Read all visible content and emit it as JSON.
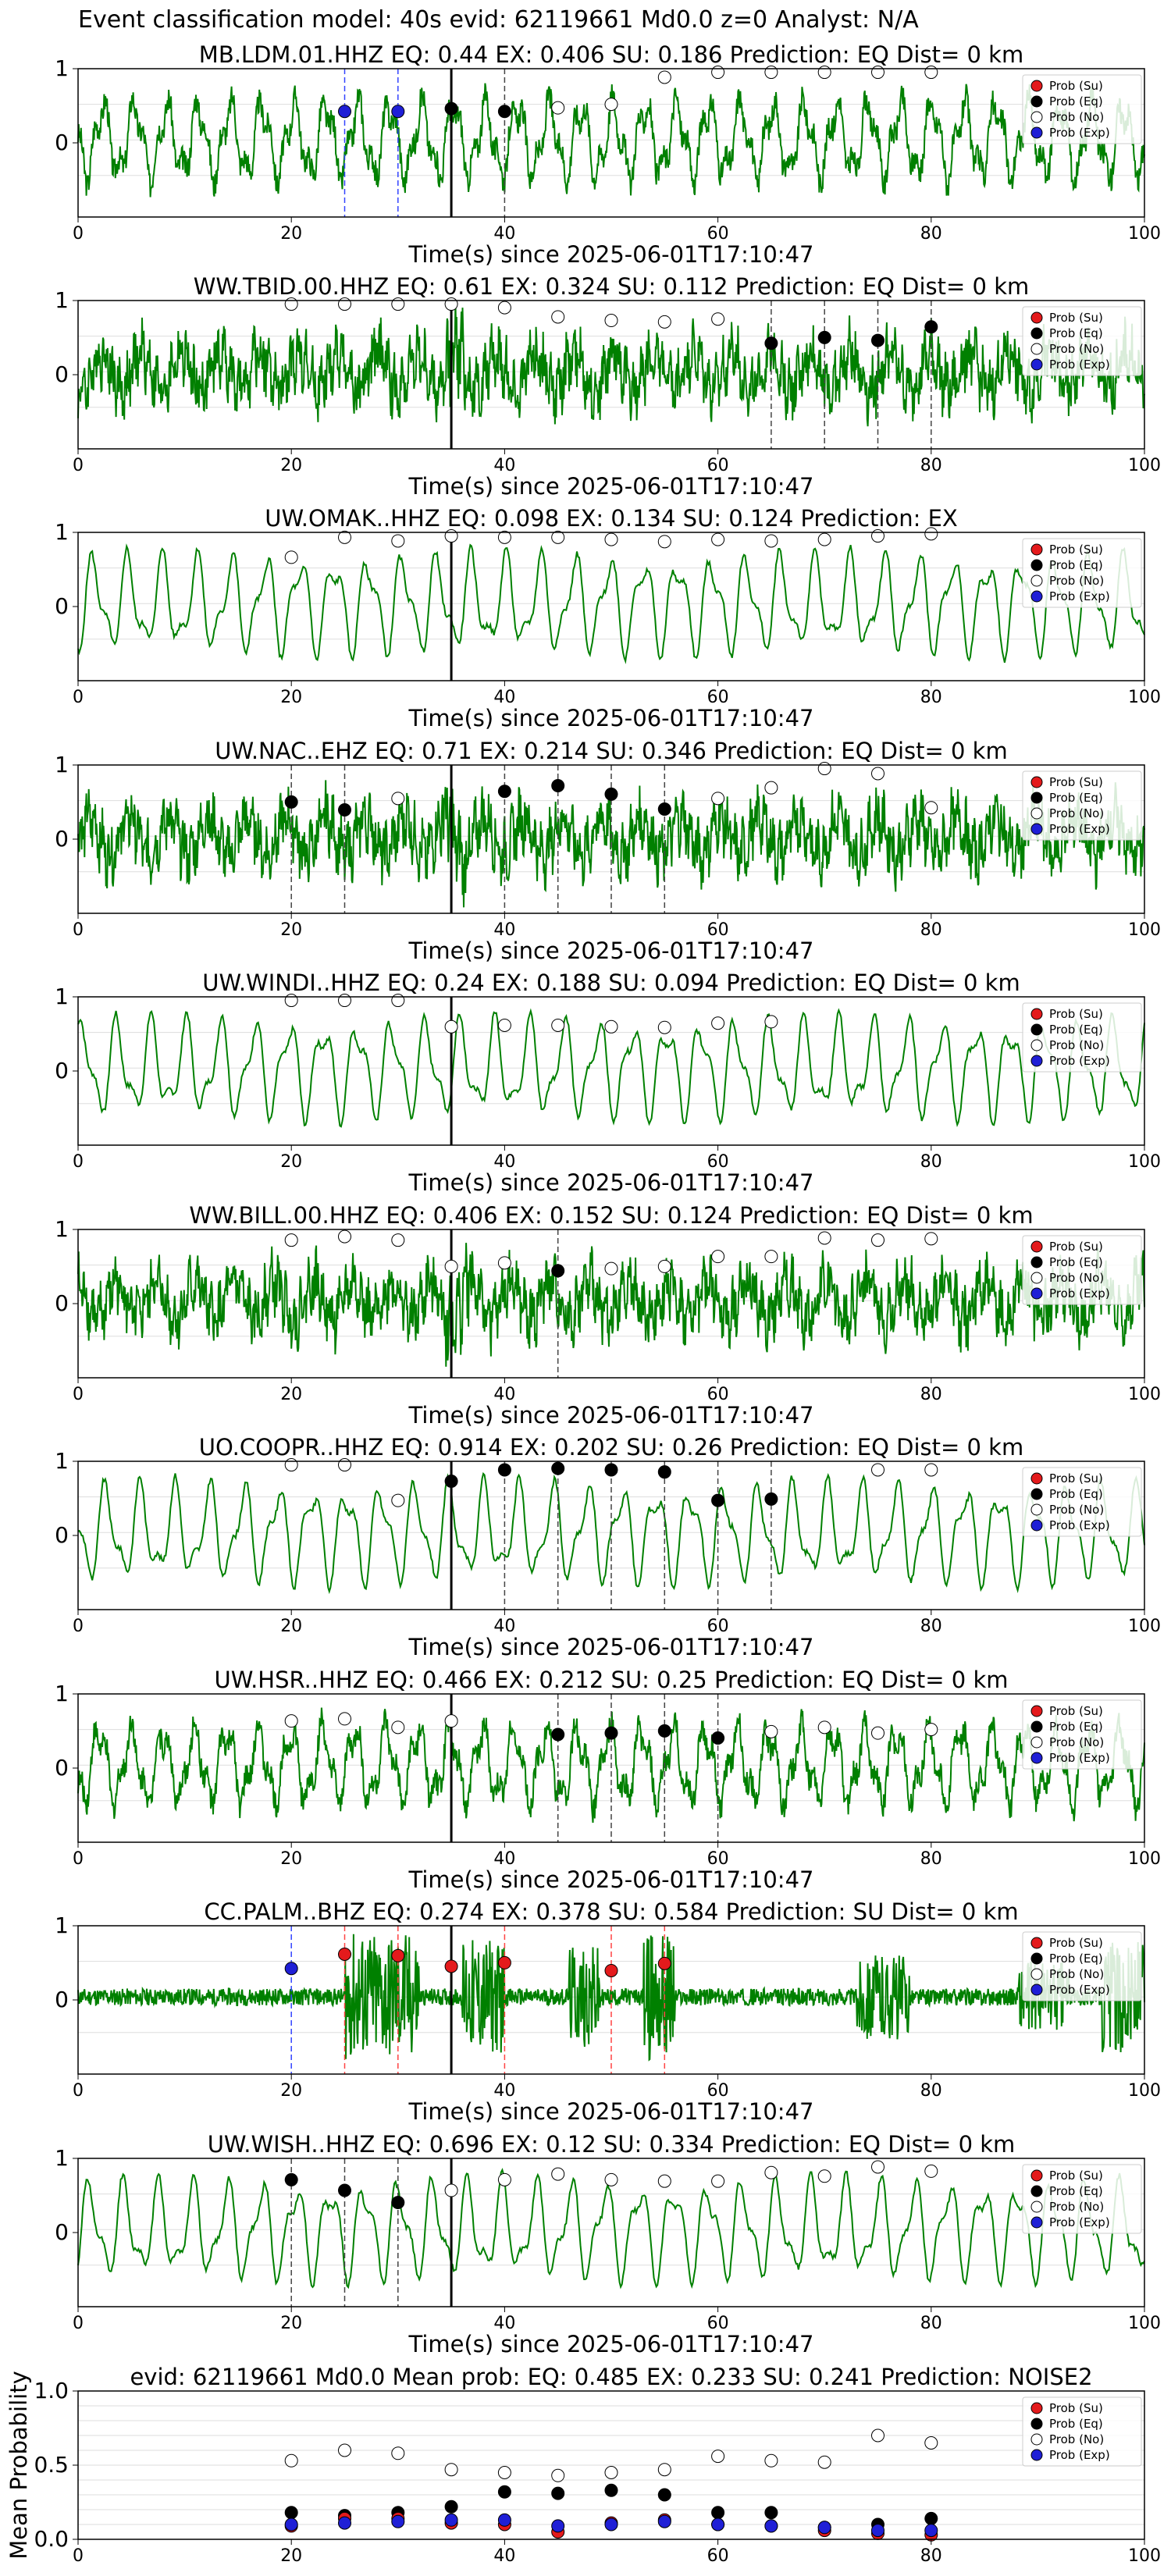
{
  "figure_title": "Event classification model: 40s evid: 62119661 Md0.0 z=0 Analyst: N/A",
  "xlabel": "Time(s) since 2025-06-01T17:10:47",
  "legend_labels": [
    "Prob (Su)",
    "Prob (Eq)",
    "Prob (No)",
    "Prob (Exp)"
  ],
  "colors": {
    "su": "#e41a1c",
    "eq": "#000000",
    "no": "#ffffff",
    "exp": "#1f1fd6",
    "waveform": "#008000",
    "grid": "#dddddd"
  },
  "xticks": [
    "0",
    "20",
    "40",
    "60",
    "80",
    "100"
  ],
  "station_yticks": [
    "1",
    "0"
  ],
  "mean_yticks": [
    "1.0",
    "0.5",
    "0.0"
  ],
  "chart_data": [
    {
      "type": "line",
      "title": "MB.LDM.01.HHZ   EQ: 0.44   EX: 0.406   SU: 0.186   Prediction: EQ    Dist= 0 km",
      "style": "mixed",
      "pick": 35,
      "points": [
        {
          "x": 25,
          "cls": "exp",
          "y": 0.4,
          "line": true
        },
        {
          "x": 30,
          "cls": "exp",
          "y": 0.4,
          "line": true
        },
        {
          "x": 35,
          "cls": "eq",
          "y": 0.44
        },
        {
          "x": 40,
          "cls": "eq",
          "y": 0.4,
          "line": true
        },
        {
          "x": 45,
          "cls": "no",
          "y": 0.45
        },
        {
          "x": 50,
          "cls": "no",
          "y": 0.5
        },
        {
          "x": 55,
          "cls": "no",
          "y": 0.88
        },
        {
          "x": 60,
          "cls": "no",
          "y": 0.95
        },
        {
          "x": 65,
          "cls": "no",
          "y": 0.95
        },
        {
          "x": 70,
          "cls": "no",
          "y": 0.95
        },
        {
          "x": 75,
          "cls": "no",
          "y": 0.95
        },
        {
          "x": 80,
          "cls": "no",
          "y": 0.95
        }
      ]
    },
    {
      "type": "line",
      "title": "WW.TBID.00.HHZ   EQ: 0.61   EX: 0.324   SU: 0.112   Prediction: EQ    Dist= 0 km",
      "style": "noisy",
      "pick": 35,
      "points": [
        {
          "x": 20,
          "cls": "no",
          "y": 0.95
        },
        {
          "x": 25,
          "cls": "no",
          "y": 0.95
        },
        {
          "x": 30,
          "cls": "no",
          "y": 0.95
        },
        {
          "x": 35,
          "cls": "no",
          "y": 0.95
        },
        {
          "x": 40,
          "cls": "no",
          "y": 0.9
        },
        {
          "x": 45,
          "cls": "no",
          "y": 0.77
        },
        {
          "x": 50,
          "cls": "no",
          "y": 0.72
        },
        {
          "x": 55,
          "cls": "no",
          "y": 0.7
        },
        {
          "x": 60,
          "cls": "no",
          "y": 0.74
        },
        {
          "x": 65,
          "cls": "eq",
          "y": 0.4,
          "line": true
        },
        {
          "x": 70,
          "cls": "eq",
          "y": 0.48,
          "line": true
        },
        {
          "x": 75,
          "cls": "eq",
          "y": 0.44,
          "line": true
        },
        {
          "x": 80,
          "cls": "eq",
          "y": 0.63,
          "line": true
        }
      ]
    },
    {
      "type": "line",
      "title": "UW.OMAK..HHZ   EQ: 0.098   EX: 0.134   SU: 0.124   Prediction: EX",
      "style": "smooth",
      "pick": 35,
      "points": [
        {
          "x": 20,
          "cls": "no",
          "y": 0.65
        },
        {
          "x": 25,
          "cls": "no",
          "y": 0.93
        },
        {
          "x": 30,
          "cls": "no",
          "y": 0.88
        },
        {
          "x": 35,
          "cls": "no",
          "y": 0.95
        },
        {
          "x": 40,
          "cls": "no",
          "y": 0.93
        },
        {
          "x": 45,
          "cls": "no",
          "y": 0.93
        },
        {
          "x": 50,
          "cls": "no",
          "y": 0.9
        },
        {
          "x": 55,
          "cls": "no",
          "y": 0.87
        },
        {
          "x": 60,
          "cls": "no",
          "y": 0.9
        },
        {
          "x": 65,
          "cls": "no",
          "y": 0.88
        },
        {
          "x": 70,
          "cls": "no",
          "y": 0.9
        },
        {
          "x": 75,
          "cls": "no",
          "y": 0.95
        },
        {
          "x": 80,
          "cls": "no",
          "y": 0.98
        }
      ]
    },
    {
      "type": "line",
      "title": "UW.NAC..EHZ   EQ: 0.71   EX: 0.214   SU: 0.346   Prediction: EQ    Dist= 0 km",
      "style": "noisy",
      "pick": 35,
      "points": [
        {
          "x": 20,
          "cls": "eq",
          "y": 0.48,
          "line": true
        },
        {
          "x": 25,
          "cls": "eq",
          "y": 0.37,
          "line": true
        },
        {
          "x": 30,
          "cls": "no",
          "y": 0.53
        },
        {
          "x": 40,
          "cls": "eq",
          "y": 0.63,
          "line": true
        },
        {
          "x": 45,
          "cls": "eq",
          "y": 0.71,
          "line": true
        },
        {
          "x": 50,
          "cls": "eq",
          "y": 0.59,
          "line": true
        },
        {
          "x": 55,
          "cls": "eq",
          "y": 0.38,
          "line": true
        },
        {
          "x": 60,
          "cls": "no",
          "y": 0.53
        },
        {
          "x": 65,
          "cls": "no",
          "y": 0.68
        },
        {
          "x": 70,
          "cls": "no",
          "y": 0.95
        },
        {
          "x": 75,
          "cls": "no",
          "y": 0.88
        },
        {
          "x": 80,
          "cls": "no",
          "y": 0.4
        }
      ]
    },
    {
      "type": "line",
      "title": "UW.WINDI..HHZ   EQ: 0.24   EX: 0.188   SU: 0.094   Prediction: EQ    Dist= 0 km",
      "style": "smooth",
      "pick": 35,
      "points": [
        {
          "x": 20,
          "cls": "no",
          "y": 0.95
        },
        {
          "x": 25,
          "cls": "no",
          "y": 0.95
        },
        {
          "x": 30,
          "cls": "no",
          "y": 0.95
        },
        {
          "x": 35,
          "cls": "no",
          "y": 0.58
        },
        {
          "x": 40,
          "cls": "no",
          "y": 0.6
        },
        {
          "x": 45,
          "cls": "no",
          "y": 0.6
        },
        {
          "x": 50,
          "cls": "no",
          "y": 0.58
        },
        {
          "x": 55,
          "cls": "no",
          "y": 0.57
        },
        {
          "x": 60,
          "cls": "no",
          "y": 0.63
        },
        {
          "x": 65,
          "cls": "no",
          "y": 0.65
        }
      ]
    },
    {
      "type": "line",
      "title": "WW.BILL.00.HHZ   EQ: 0.406   EX: 0.152   SU: 0.124   Prediction: EQ    Dist= 0 km",
      "style": "noisy",
      "pick": 35,
      "points": [
        {
          "x": 20,
          "cls": "no",
          "y": 0.85
        },
        {
          "x": 25,
          "cls": "no",
          "y": 0.9
        },
        {
          "x": 30,
          "cls": "no",
          "y": 0.85
        },
        {
          "x": 35,
          "cls": "no",
          "y": 0.48
        },
        {
          "x": 40,
          "cls": "no",
          "y": 0.53
        },
        {
          "x": 45,
          "cls": "eq",
          "y": 0.42,
          "line": true
        },
        {
          "x": 50,
          "cls": "no",
          "y": 0.45
        },
        {
          "x": 55,
          "cls": "no",
          "y": 0.48
        },
        {
          "x": 60,
          "cls": "no",
          "y": 0.62
        },
        {
          "x": 65,
          "cls": "no",
          "y": 0.62
        },
        {
          "x": 70,
          "cls": "no",
          "y": 0.88
        },
        {
          "x": 75,
          "cls": "no",
          "y": 0.85
        },
        {
          "x": 80,
          "cls": "no",
          "y": 0.87
        }
      ]
    },
    {
      "type": "line",
      "title": "UO.COOPR..HHZ   EQ: 0.914   EX: 0.202   SU: 0.26    Prediction: EQ    Dist= 0 km",
      "style": "smooth",
      "pick": 35,
      "points": [
        {
          "x": 20,
          "cls": "no",
          "y": 0.95
        },
        {
          "x": 25,
          "cls": "no",
          "y": 0.95
        },
        {
          "x": 30,
          "cls": "no",
          "y": 0.45
        },
        {
          "x": 35,
          "cls": "eq",
          "y": 0.72
        },
        {
          "x": 40,
          "cls": "eq",
          "y": 0.88,
          "line": true
        },
        {
          "x": 45,
          "cls": "eq",
          "y": 0.9,
          "line": true
        },
        {
          "x": 50,
          "cls": "eq",
          "y": 0.88,
          "line": true
        },
        {
          "x": 55,
          "cls": "eq",
          "y": 0.85,
          "line": true
        },
        {
          "x": 60,
          "cls": "eq",
          "y": 0.45,
          "line": true
        },
        {
          "x": 65,
          "cls": "eq",
          "y": 0.47,
          "line": true
        },
        {
          "x": 75,
          "cls": "no",
          "y": 0.88
        },
        {
          "x": 80,
          "cls": "no",
          "y": 0.88
        }
      ]
    },
    {
      "type": "line",
      "title": "UW.HSR..HHZ   EQ: 0.466   EX: 0.212   SU: 0.25    Prediction: EQ    Dist= 0 km",
      "style": "mixed",
      "pick": 35,
      "points": [
        {
          "x": 20,
          "cls": "no",
          "y": 0.62
        },
        {
          "x": 25,
          "cls": "no",
          "y": 0.65
        },
        {
          "x": 30,
          "cls": "no",
          "y": 0.53
        },
        {
          "x": 35,
          "cls": "no",
          "y": 0.62
        },
        {
          "x": 45,
          "cls": "eq",
          "y": 0.43,
          "line": true
        },
        {
          "x": 50,
          "cls": "eq",
          "y": 0.45,
          "line": true
        },
        {
          "x": 55,
          "cls": "eq",
          "y": 0.48,
          "line": true
        },
        {
          "x": 60,
          "cls": "eq",
          "y": 0.38,
          "line": true
        },
        {
          "x": 65,
          "cls": "no",
          "y": 0.47
        },
        {
          "x": 70,
          "cls": "no",
          "y": 0.53
        },
        {
          "x": 75,
          "cls": "no",
          "y": 0.45
        },
        {
          "x": 80,
          "cls": "no",
          "y": 0.5
        }
      ]
    },
    {
      "type": "line",
      "title": "CC.PALM..BHZ   EQ: 0.274   EX: 0.378   SU: 0.584   Prediction: SU    Dist= 0 km",
      "style": "bursty",
      "pick": 35,
      "points": [
        {
          "x": 20,
          "cls": "exp",
          "y": 0.4,
          "line": true
        },
        {
          "x": 25,
          "cls": "su",
          "y": 0.6,
          "line": true
        },
        {
          "x": 30,
          "cls": "su",
          "y": 0.58,
          "line": true
        },
        {
          "x": 35,
          "cls": "su",
          "y": 0.43
        },
        {
          "x": 40,
          "cls": "su",
          "y": 0.48,
          "line": true
        },
        {
          "x": 50,
          "cls": "su",
          "y": 0.37,
          "line": true
        },
        {
          "x": 55,
          "cls": "su",
          "y": 0.47,
          "line": true
        }
      ]
    },
    {
      "type": "line",
      "title": "UW.WISH..HHZ   EQ: 0.696   EX: 0.12   SU: 0.334   Prediction: EQ    Dist= 0 km",
      "style": "smooth",
      "pick": 35,
      "points": [
        {
          "x": 20,
          "cls": "eq",
          "y": 0.7,
          "line": true
        },
        {
          "x": 25,
          "cls": "eq",
          "y": 0.55,
          "line": true
        },
        {
          "x": 30,
          "cls": "eq",
          "y": 0.38,
          "line": true
        },
        {
          "x": 35,
          "cls": "no",
          "y": 0.55
        },
        {
          "x": 40,
          "cls": "no",
          "y": 0.7
        },
        {
          "x": 45,
          "cls": "no",
          "y": 0.78
        },
        {
          "x": 50,
          "cls": "no",
          "y": 0.7
        },
        {
          "x": 55,
          "cls": "no",
          "y": 0.68
        },
        {
          "x": 60,
          "cls": "no",
          "y": 0.68
        },
        {
          "x": 65,
          "cls": "no",
          "y": 0.8
        },
        {
          "x": 70,
          "cls": "no",
          "y": 0.75
        },
        {
          "x": 75,
          "cls": "no",
          "y": 0.88
        },
        {
          "x": 80,
          "cls": "no",
          "y": 0.82
        }
      ]
    },
    {
      "type": "scatter",
      "title": "evid: 62119661  Md0.0   Mean prob:   EQ: 0.485  EX: 0.233  SU: 0.241   Prediction: NOISE2",
      "ylabel": "Mean Probability",
      "ylim": [
        0,
        1
      ],
      "xlim": [
        0,
        100
      ],
      "x": [
        20,
        25,
        30,
        35,
        40,
        45,
        50,
        55,
        60,
        65,
        70,
        75,
        80
      ],
      "series": [
        {
          "name": "Prob (No)",
          "cls": "no",
          "values": [
            0.53,
            0.6,
            0.58,
            0.47,
            0.45,
            0.43,
            0.45,
            0.47,
            0.56,
            0.53,
            0.52,
            0.7,
            0.65
          ]
        },
        {
          "name": "Prob (Eq)",
          "cls": "eq",
          "values": [
            0.18,
            0.16,
            0.18,
            0.22,
            0.32,
            0.31,
            0.33,
            0.3,
            0.18,
            0.18,
            0.08,
            0.1,
            0.14
          ]
        },
        {
          "name": "Prob (Su)",
          "cls": "su",
          "values": [
            0.09,
            0.14,
            0.14,
            0.11,
            0.1,
            0.05,
            0.11,
            0.13,
            0.1,
            0.09,
            0.06,
            0.04,
            0.03
          ]
        },
        {
          "name": "Prob (Exp)",
          "cls": "exp",
          "values": [
            0.1,
            0.11,
            0.12,
            0.13,
            0.13,
            0.09,
            0.1,
            0.12,
            0.1,
            0.09,
            0.08,
            0.06,
            0.06
          ]
        }
      ]
    }
  ]
}
